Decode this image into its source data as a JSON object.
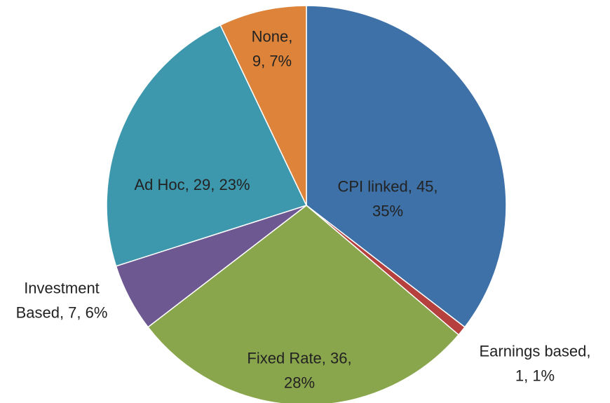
{
  "chart_data": {
    "type": "pie",
    "values": [
      45,
      1,
      36,
      7,
      29,
      9
    ],
    "value_labels": [
      [
        "CPI linked, 45,",
        "35%"
      ],
      [
        "Earnings based,",
        "1, 1%"
      ],
      [
        "Fixed Rate, 36,",
        "28%"
      ],
      [
        "Investment",
        "Based, 7, 6%"
      ],
      [
        "Ad Hoc, 29, 23%"
      ],
      [
        "None,",
        "9, 7%"
      ]
    ],
    "colors": [
      "#3e71a8",
      "#b5403d",
      "#8aa64c",
      "#6d5891",
      "#3e98ad",
      "#dd843a"
    ],
    "start_angle": 0,
    "direction": "clockwise"
  }
}
